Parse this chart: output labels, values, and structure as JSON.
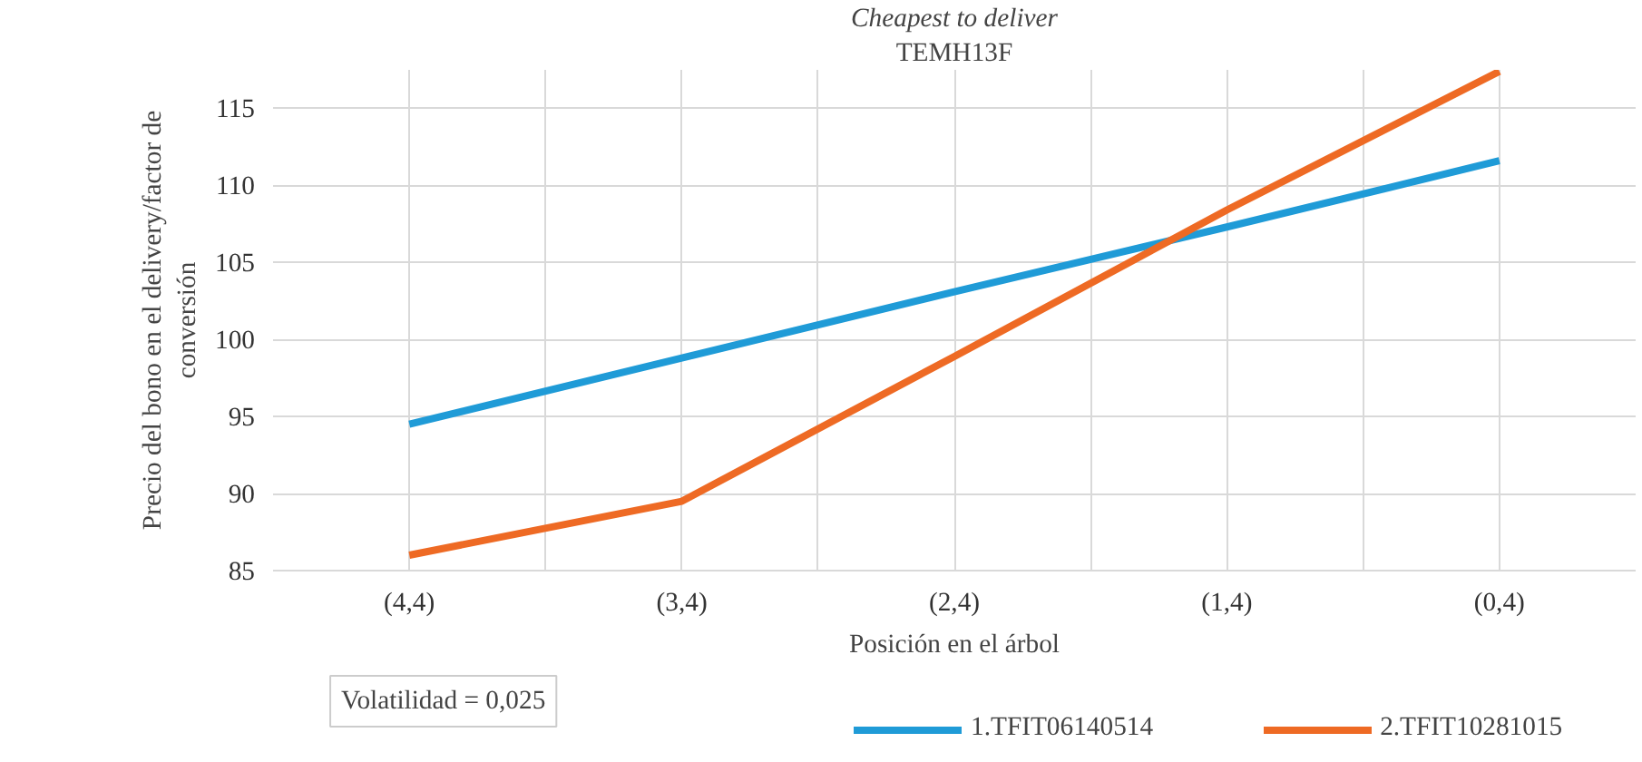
{
  "chart_data": {
    "type": "line",
    "title": "Cheapest to deliver",
    "subtitle": "TEMH13F",
    "xlabel": "Posición en el árbol",
    "ylabel": "Precio del bono en el delivery/factor de conversión",
    "categories": [
      "(4,4)",
      "(3,4)",
      "(2,4)",
      "(1,4)",
      "(0,4)"
    ],
    "series": [
      {
        "name": "1.TFIT06140514",
        "color": "#1f9bd7",
        "values": [
          94.5,
          98.8,
          103.1,
          107.3,
          111.6
        ]
      },
      {
        "name": "2.TFIT10281015",
        "color": "#ee6a24",
        "values": [
          86.0,
          89.5,
          98.9,
          108.4,
          117.4
        ]
      }
    ],
    "ylim": [
      85,
      117.5
    ],
    "yticks": [
      85,
      90,
      95,
      100,
      105,
      110,
      115
    ],
    "grid": true,
    "legend": "bottom",
    "marker": "none",
    "line_style": "solid",
    "annotations": [
      "Volatilidad = 0,025"
    ]
  }
}
